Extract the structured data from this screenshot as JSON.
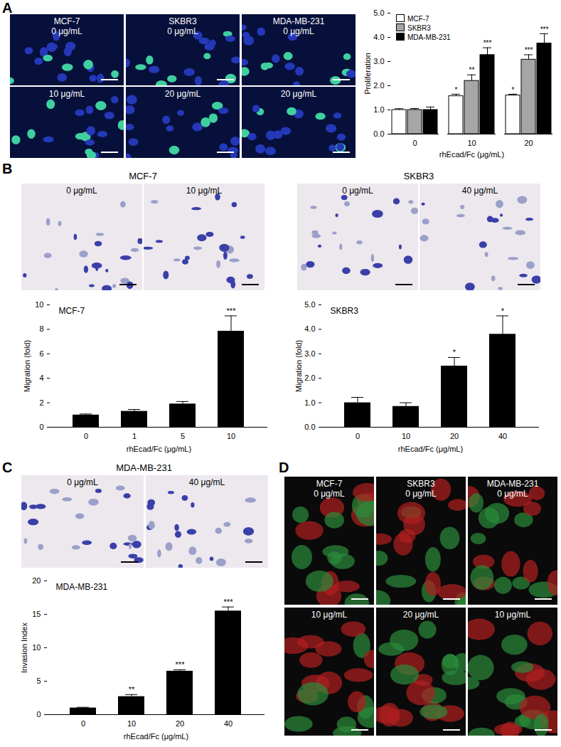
{
  "panel_labels": [
    "A",
    "B",
    "C",
    "D"
  ],
  "images": {
    "A": {
      "columns": [
        "MCF-7",
        "SKBR3",
        "MDA-MB-231"
      ],
      "labels": [
        [
          "0 μg/mL",
          "0 μg/mL",
          "0 μg/mL"
        ],
        [
          "10 μg/mL",
          "20 μg/mL",
          "20 μg/mL"
        ]
      ]
    },
    "B": [
      {
        "title": "MCF-7",
        "labels": [
          "0 μg/mL",
          "10 μg/mL"
        ]
      },
      {
        "title": "SKBR3",
        "labels": [
          "0 μg/mL",
          "40 μg/mL"
        ]
      }
    ],
    "C": {
      "title": "MDA-MB-231",
      "labels": [
        "0 μg/mL",
        "40 μg/mL"
      ]
    },
    "D": {
      "columns": [
        "MCF-7",
        "SKBR3",
        "MDA-MB-231"
      ],
      "labels": [
        [
          "0 μg/mL",
          "0 μg/mL",
          "0 μg/mL"
        ],
        [
          "10 μg/mL",
          "20 μg/mL",
          "10 μg/mL"
        ]
      ]
    }
  },
  "chart_data": [
    {
      "type": "bar",
      "y_label": "Proliferation",
      "x_label": "rhEcad/Fc (μg/mL)",
      "categories": [
        0,
        10,
        20
      ],
      "series": [
        {
          "name": "MCF-7",
          "color": "#ffffff",
          "values": [
            1.0,
            1.57,
            1.6
          ],
          "errors": [
            0.05,
            0.08,
            0.05
          ],
          "significance": [
            null,
            "*",
            "*"
          ]
        },
        {
          "name": "SKBR3",
          "color": "#a6a6a6",
          "values": [
            1.0,
            2.2,
            3.08
          ],
          "errors": [
            0.06,
            0.25,
            0.2
          ],
          "significance": [
            null,
            "**",
            "***"
          ]
        },
        {
          "name": "MDA-MB-231",
          "color": "#000000",
          "values": [
            1.0,
            3.27,
            3.75
          ],
          "errors": [
            0.12,
            0.3,
            0.4
          ],
          "significance": [
            null,
            "***",
            "***"
          ]
        }
      ],
      "ylim": [
        0,
        5
      ],
      "yticks": [
        0,
        1,
        2,
        3,
        4,
        5
      ],
      "legend": "top-left"
    },
    {
      "type": "bar",
      "title": "MCF-7",
      "y_label": "Migration (fold)",
      "x_label": "rhEcad/Fc (μg/mL)",
      "categories": [
        0,
        1,
        5,
        10
      ],
      "values": [
        1.0,
        1.3,
        1.9,
        7.85
      ],
      "errors": [
        0.08,
        0.15,
        0.2,
        1.25
      ],
      "significance": [
        null,
        null,
        null,
        "***"
      ],
      "color": "#000000",
      "ylim": [
        0,
        10
      ],
      "yticks": [
        0,
        2,
        4,
        6,
        8,
        10
      ]
    },
    {
      "type": "bar",
      "title": "SKBR3",
      "y_label": "Migration (fold)",
      "x_label": "rhEcad/Fc (μg/mL)",
      "categories": [
        0,
        10,
        20,
        40
      ],
      "values": [
        1.0,
        0.85,
        2.5,
        3.8
      ],
      "errors": [
        0.22,
        0.15,
        0.35,
        0.75
      ],
      "significance": [
        null,
        null,
        "*",
        "*"
      ],
      "color": "#000000",
      "ylim": [
        0,
        5
      ],
      "yticks": [
        0,
        1,
        2,
        3,
        4,
        5
      ]
    },
    {
      "type": "bar",
      "title": "MDA-MB-231",
      "y_label": "Invasion Index",
      "x_label": "rhEcad/Fc (μg/mL)",
      "categories": [
        0,
        10,
        20,
        40
      ],
      "values": [
        1.0,
        2.7,
        6.5,
        15.5
      ],
      "errors": [
        0.1,
        0.3,
        0.2,
        0.6
      ],
      "significance": [
        null,
        "**",
        "***",
        "***"
      ],
      "color": "#000000",
      "ylim": [
        0,
        20
      ],
      "yticks": [
        0,
        5,
        10,
        15,
        20
      ]
    }
  ]
}
